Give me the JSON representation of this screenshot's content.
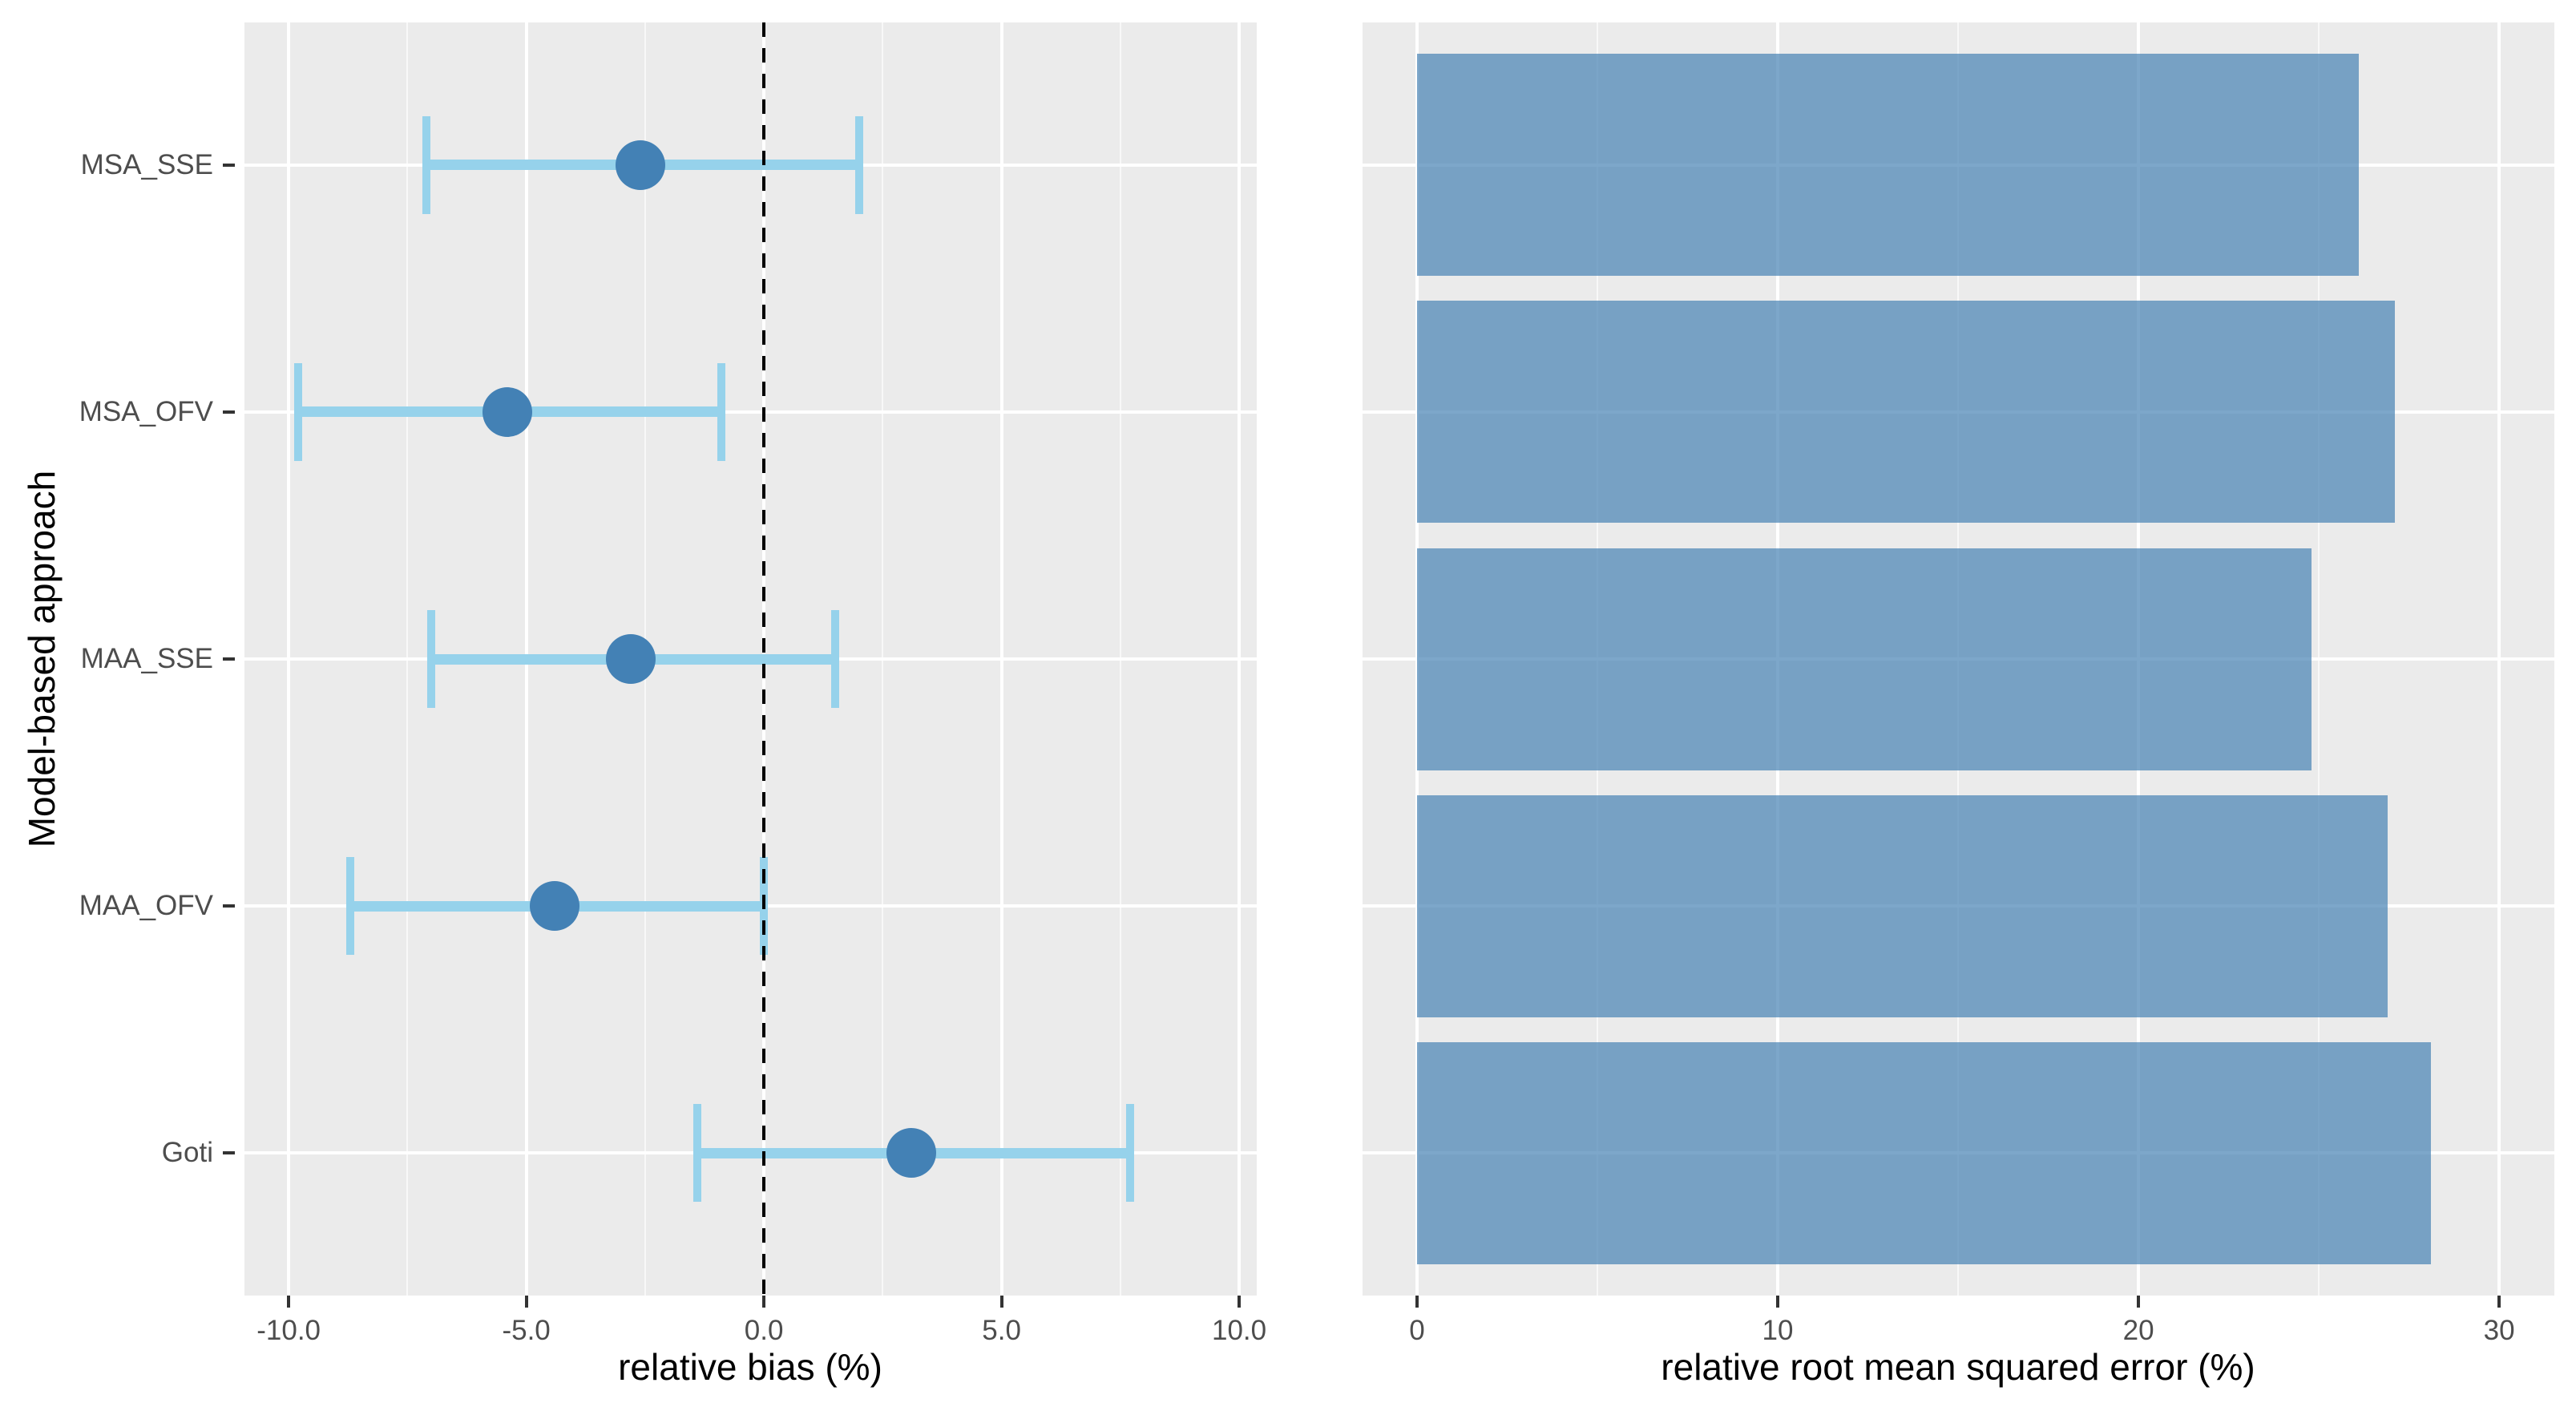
{
  "figure": {
    "background": "#ffffff",
    "panel_background": "#EBEBEB",
    "y_axis_title": "Model-based approach",
    "categories_top_to_bottom": [
      "MSA_SSE",
      "MSA_OFV",
      "MAA_SSE",
      "MAA_OFV",
      "Goti"
    ]
  },
  "colors": {
    "panel_bg": "#EBEBEB",
    "grid_major": "#FFFFFF",
    "grid_minor": "rgba(255,255,255,0.65)",
    "error_bar": "#96D2EB",
    "point": "#4381B5",
    "bar_fill": "rgba(70,130,180,0.7)",
    "reference_line": "#000000",
    "tick_mark": "#333333",
    "tick_text": "#4D4D4D",
    "title_text": "#000000"
  },
  "chart_data": [
    {
      "type": "scatter",
      "subtype": "pointrange-with-errorbars",
      "panel": "left",
      "title": "",
      "xlabel": "relative bias (%)",
      "ylabel": "Model-based approach",
      "categories": [
        "MSA_SSE",
        "MSA_OFV",
        "MAA_SSE",
        "MAA_OFV",
        "Goti"
      ],
      "series": [
        {
          "name": "relative bias",
          "values": [
            -2.6,
            -5.4,
            -2.8,
            -4.4,
            3.1
          ],
          "ci_low": [
            -7.1,
            -9.8,
            -7.0,
            -8.7,
            -1.4
          ],
          "ci_high": [
            2.0,
            -0.9,
            1.5,
            0.0,
            7.7
          ]
        }
      ],
      "reference_line_x": 0,
      "xlim": [
        -10.93,
        10.37
      ],
      "xticks": [
        -10,
        -5,
        0,
        5,
        10
      ],
      "xtick_labels": [
        "-10.0",
        "-5.0",
        "0.0",
        "5.0",
        "10.0"
      ],
      "minor_xticks": [
        -7.5,
        -2.5,
        2.5,
        7.5
      ],
      "grid": true,
      "legend": false
    },
    {
      "type": "bar",
      "orientation": "horizontal",
      "panel": "right",
      "title": "",
      "xlabel": "relative root mean squared error (%)",
      "ylabel": "",
      "categories": [
        "MSA_SSE",
        "MSA_OFV",
        "MAA_SSE",
        "MAA_OFV",
        "Goti"
      ],
      "values": [
        26.1,
        27.1,
        24.8,
        26.9,
        28.1
      ],
      "xlim": [
        -1.51,
        31.53
      ],
      "xticks": [
        0,
        10,
        20,
        30
      ],
      "xtick_labels": [
        "0",
        "10",
        "20",
        "30"
      ],
      "minor_xticks": [
        5,
        15,
        25
      ],
      "grid": true,
      "legend": false
    }
  ]
}
